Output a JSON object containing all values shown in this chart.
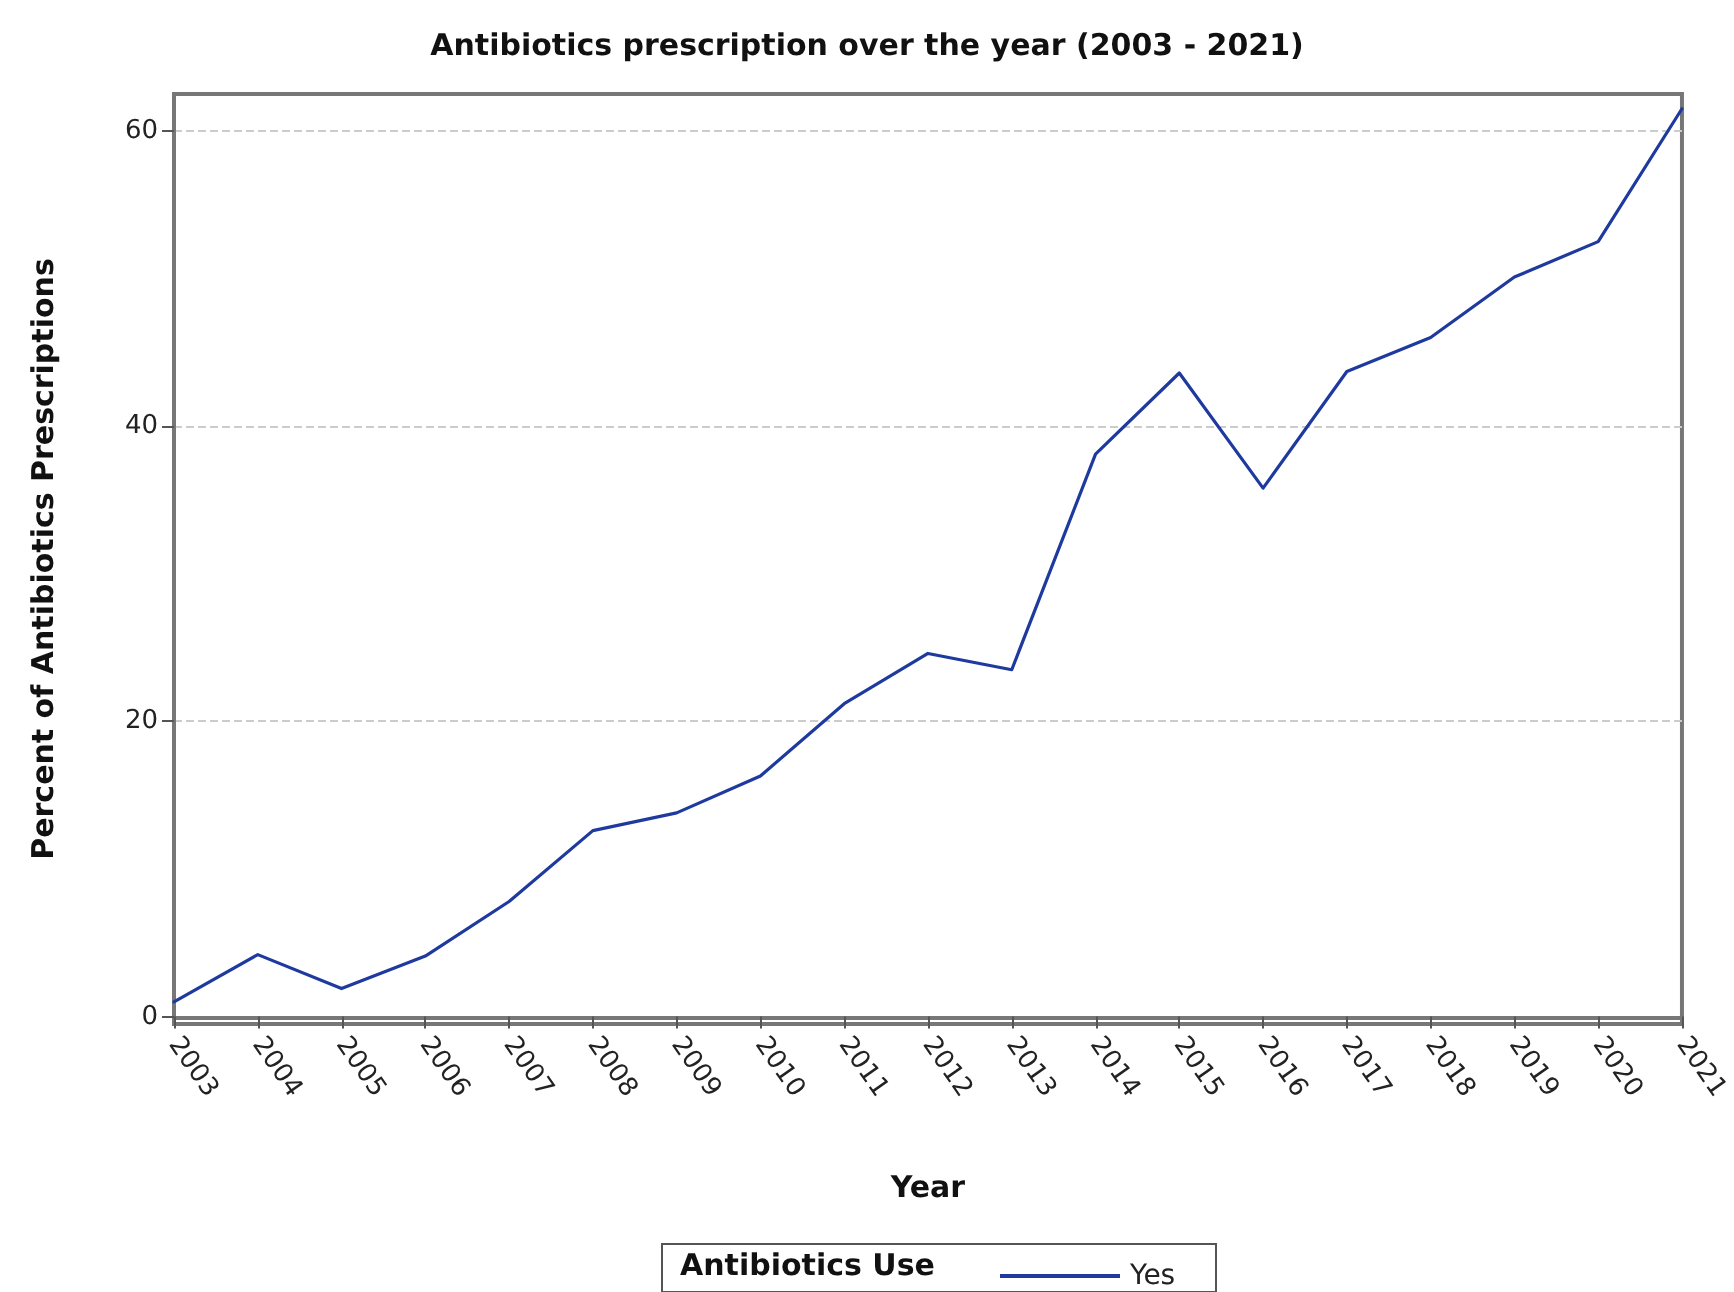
{
  "chart_data": {
    "type": "line",
    "title": "Antibiotics prescription over the year (2003 - 2021)",
    "xlabel": "Year",
    "ylabel": "Percent of Antibiotics Prescriptions",
    "legend_title": "Antibiotics Use",
    "categories": [
      "2003",
      "2004",
      "2005",
      "2006",
      "2007",
      "2008",
      "2009",
      "2010",
      "2011",
      "2012",
      "2013",
      "2014",
      "2015",
      "2016",
      "2017",
      "2018",
      "2019",
      "2020",
      "2021"
    ],
    "series": [
      {
        "name": "Yes",
        "color": "#1f3a9e",
        "values": [
          1.0,
          4.2,
          1.9,
          4.1,
          7.8,
          12.6,
          13.8,
          16.3,
          21.2,
          24.6,
          23.5,
          38.1,
          43.6,
          35.8,
          43.7,
          46.0,
          50.1,
          52.5,
          61.5
        ]
      }
    ],
    "ylim": [
      -0.5,
      62.5
    ],
    "yticks": [
      0,
      20,
      40,
      60
    ],
    "grid": "y",
    "legend": "bottom",
    "marker": "none",
    "line_style": "solid"
  }
}
